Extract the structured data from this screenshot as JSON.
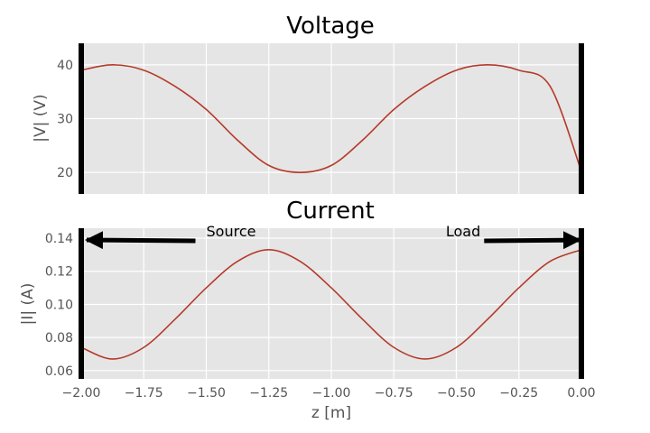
{
  "chart_data": [
    {
      "type": "line",
      "title": "Voltage",
      "xlabel": "",
      "ylabel": "|V| (V)",
      "xlim": [
        -2.0,
        0.0
      ],
      "ylim": [
        16,
        44
      ],
      "yticks": [
        20,
        30,
        40
      ],
      "ytick_labels": [
        "20",
        "30",
        "40"
      ],
      "xticks": [
        -2.0,
        -1.75,
        -1.5,
        -1.25,
        -1.0,
        -0.75,
        -0.5,
        -0.25,
        0.0
      ],
      "xtick_labels": [],
      "grid": true,
      "series": [
        {
          "color": "#b53a2a",
          "x": [
            -2.0,
            -1.875,
            -1.75,
            -1.625,
            -1.5,
            -1.375,
            -1.25,
            -1.125,
            -1.0,
            -0.875,
            -0.75,
            -0.625,
            -0.5,
            -0.375,
            -0.25,
            -0.125,
            0.0
          ],
          "y": [
            39.0,
            40.0,
            39.0,
            36.0,
            31.7,
            26.0,
            21.3,
            20.0,
            21.3,
            26.0,
            31.7,
            36.0,
            39.0,
            40.0,
            39.0,
            36.0,
            20.2
          ]
        }
      ],
      "walls_x": [
        -2.0,
        0.0
      ]
    },
    {
      "type": "line",
      "title": "Current",
      "xlabel": "z [m]",
      "ylabel": "|I| (A)",
      "xlim": [
        -2.0,
        0.0
      ],
      "ylim": [
        0.055,
        0.146
      ],
      "yticks": [
        0.06,
        0.08,
        0.1,
        0.12,
        0.14
      ],
      "ytick_labels": [
        "0.06",
        "0.08",
        "0.10",
        "0.12",
        "0.14"
      ],
      "xticks": [
        -2.0,
        -1.75,
        -1.5,
        -1.25,
        -1.0,
        -0.75,
        -0.5,
        -0.25,
        0.0
      ],
      "xtick_labels": [
        "−2.00",
        "−1.75",
        "−1.50",
        "−1.25",
        "−1.00",
        "−0.75",
        "−0.50",
        "−0.25",
        "0.00"
      ],
      "grid": true,
      "series": [
        {
          "color": "#b53a2a",
          "x": [
            -2.0,
            -1.875,
            -1.75,
            -1.625,
            -1.5,
            -1.375,
            -1.25,
            -1.125,
            -1.0,
            -0.875,
            -0.75,
            -0.625,
            -0.5,
            -0.375,
            -0.25,
            -0.125,
            0.0
          ],
          "y": [
            0.074,
            0.067,
            0.074,
            0.091,
            0.11,
            0.126,
            0.133,
            0.126,
            0.11,
            0.091,
            0.074,
            0.067,
            0.074,
            0.091,
            0.11,
            0.126,
            0.133
          ]
        }
      ],
      "walls_x": [
        -2.0,
        0.0
      ],
      "annotations": [
        {
          "text": "Source",
          "text_x": -1.5,
          "text_y": 0.14,
          "arrow_to_x": -2.0,
          "arrow_to_y": 0.14
        },
        {
          "text": "Load",
          "text_x": -0.36,
          "text_y": 0.14,
          "arrow_to_x": 0.0,
          "arrow_to_y": 0.14
        }
      ]
    }
  ]
}
